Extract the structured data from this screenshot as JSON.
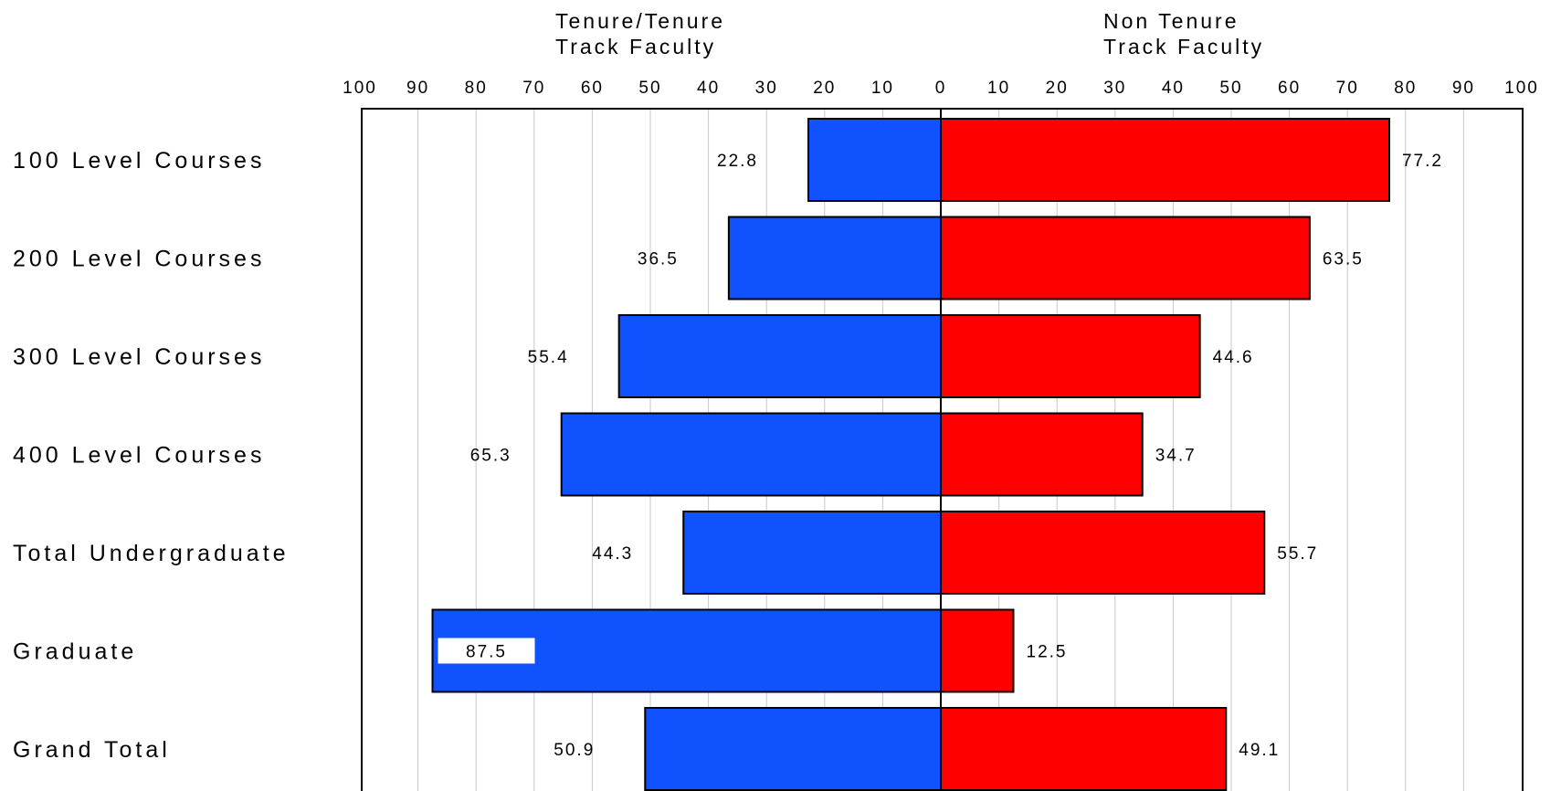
{
  "chart_data": {
    "type": "bar",
    "orientation": "horizontal",
    "layout": "diverging",
    "left_header": [
      "Tenure/Tenure",
      "Track Faculty"
    ],
    "right_header": [
      "Non Tenure",
      "Track Faculty"
    ],
    "categories": [
      "100 Level Courses",
      "200 Level Courses",
      "300 Level Courses",
      "400 Level Courses",
      "Total Undergraduate",
      "Graduate",
      "Grand Total"
    ],
    "series": [
      {
        "side": "left",
        "color": "#1152ff",
        "values": [
          22.8,
          36.5,
          55.4,
          65.3,
          44.3,
          87.5,
          50.9
        ]
      },
      {
        "side": "right",
        "color": "#ff0000",
        "values": [
          77.2,
          63.5,
          44.6,
          34.7,
          55.7,
          12.5,
          49.1
        ]
      }
    ],
    "data_labels": {
      "left": [
        "22.8",
        "36.5",
        "55.4",
        "65.3",
        "44.3",
        "87.5",
        "50.9"
      ],
      "right": [
        "77.2",
        "63.5",
        "44.6",
        "34.7",
        "55.7",
        "12.5",
        "49.1"
      ]
    },
    "axis": {
      "left_ticks": [
        "100",
        "90",
        "80",
        "70",
        "60",
        "50",
        "40",
        "30",
        "20",
        "10",
        "0"
      ],
      "right_ticks": [
        "0",
        "10",
        "20",
        "30",
        "40",
        "50",
        "60",
        "70",
        "80",
        "90",
        "100"
      ],
      "range": [
        0,
        100
      ]
    },
    "grid": true,
    "highlighted_label": "87.5"
  }
}
